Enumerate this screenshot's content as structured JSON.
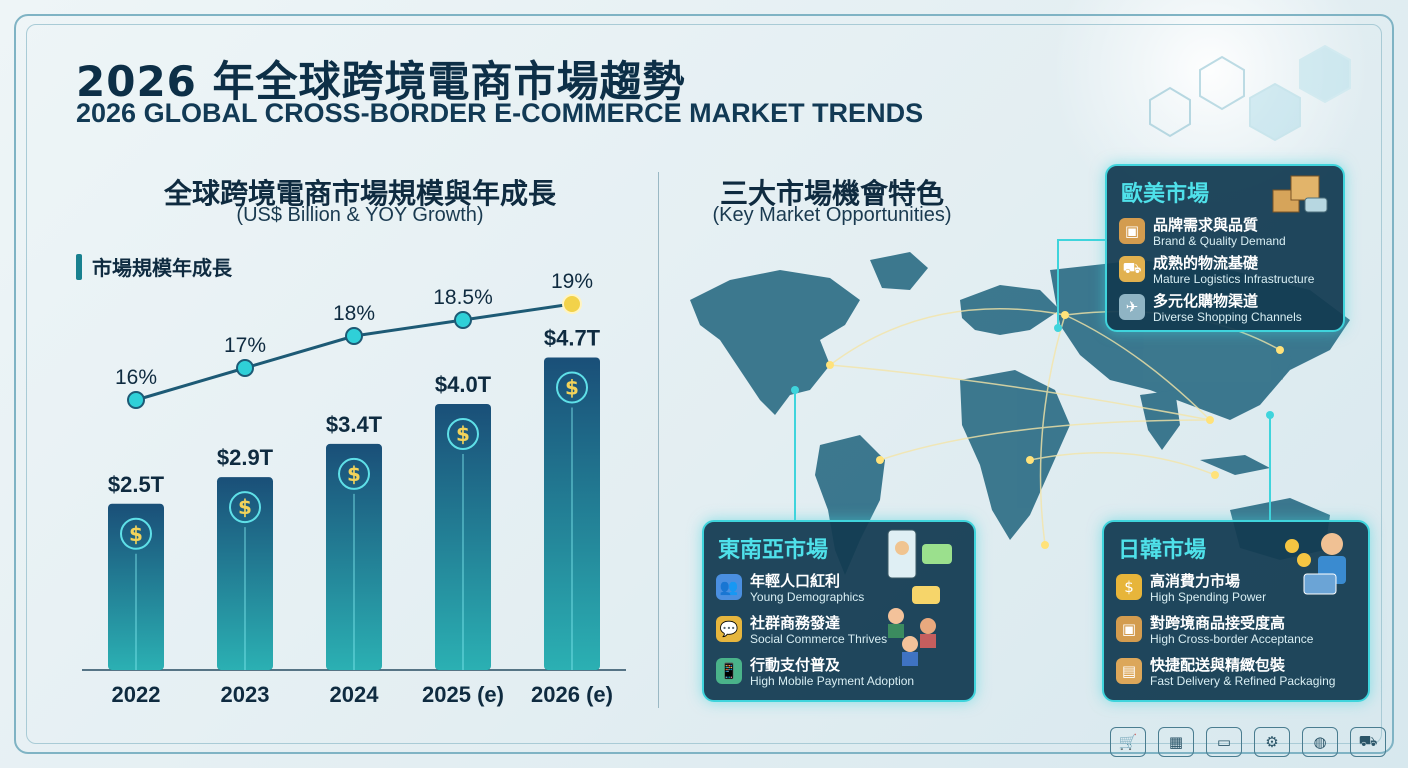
{
  "title_zh": "2026 年全球跨境電商市場趨勢",
  "title_en": "2026 GLOBAL CROSS-BORDER E-COMMERCE MARKET TRENDS",
  "left_section": {
    "title": "全球跨境電商市場規模與年成長",
    "subtitle": "(US$ Billion & YOY Growth)",
    "legend": "市場規模年成長"
  },
  "right_section": {
    "title": "三大市場機會特色",
    "subtitle": "(Key Market Opportunities)"
  },
  "chart_data": {
    "type": "bar",
    "categories": [
      "2022",
      "2023",
      "2024",
      "2025 (e)",
      "2026 (e)"
    ],
    "values": [
      2.5,
      2.9,
      3.4,
      4.0,
      4.7
    ],
    "value_labels": [
      "$2.5T",
      "$2.9T",
      "$3.4T",
      "$4.0T",
      "$4.7T"
    ],
    "growth_line": {
      "values": [
        16,
        17,
        18,
        18.5,
        19
      ],
      "labels": [
        "16%",
        "17%",
        "18%",
        "18.5%",
        "19%"
      ]
    },
    "bar_icon": "$",
    "colors": {
      "bar_top": "#1a4f78",
      "bar_bottom": "#2bb0b3",
      "line": "#1d5a75",
      "marker": "#2fd0d8",
      "highlight_marker": "#f2d24a"
    }
  },
  "panels": {
    "na_eu": {
      "title": "歐美市場",
      "items": [
        {
          "icon": "box-icon",
          "zh": "品牌需求與品質",
          "en": "Brand & Quality Demand"
        },
        {
          "icon": "truck-icon",
          "zh": "成熟的物流基礎",
          "en": "Mature Logistics Infrastructure"
        },
        {
          "icon": "airplane-icon",
          "zh": "多元化購物渠道",
          "en": "Diverse Shopping Channels"
        }
      ]
    },
    "sea": {
      "title": "東南亞市場",
      "items": [
        {
          "icon": "people-icon",
          "zh": "年輕人口紅利",
          "en": "Young Demographics"
        },
        {
          "icon": "chat-icon",
          "zh": "社群商務發達",
          "en": "Social Commerce Thrives"
        },
        {
          "icon": "phone-icon",
          "zh": "行動支付普及",
          "en": "High Mobile Payment Adoption"
        }
      ]
    },
    "jp_kr": {
      "title": "日韓市場",
      "items": [
        {
          "icon": "coins-icon",
          "zh": "高消費力市場",
          "en": "High Spending Power"
        },
        {
          "icon": "parcel-icon",
          "zh": "對跨境商品接受度高",
          "en": "High Cross-border Acceptance"
        },
        {
          "icon": "package-icon",
          "zh": "快捷配送與精緻包裝",
          "en": "Fast Delivery & Refined Packaging"
        }
      ]
    }
  },
  "bottom_icons": [
    "cart-icon",
    "boxes-icon",
    "payment-icon",
    "gear-icon",
    "globe-icon",
    "trolley-icon"
  ]
}
